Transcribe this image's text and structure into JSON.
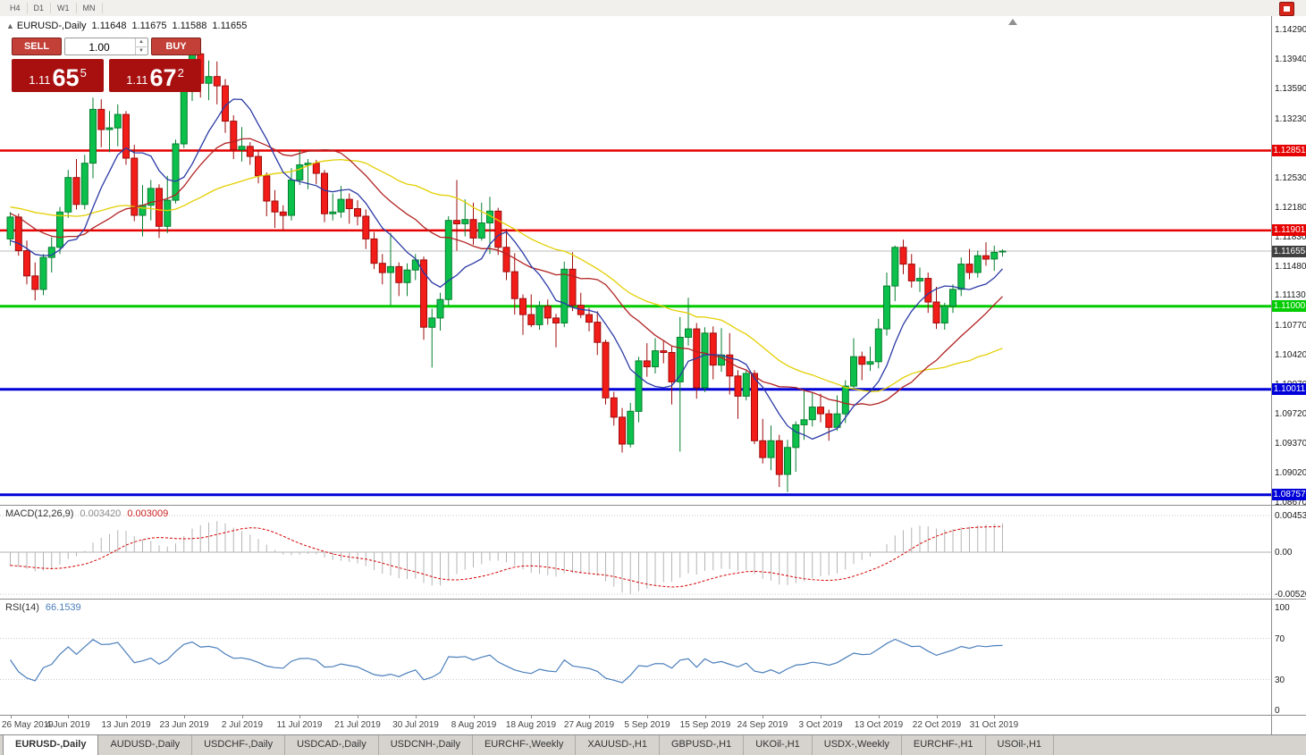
{
  "toolbar": {
    "periods": [
      "H4",
      "D1",
      "W1",
      "MN"
    ]
  },
  "chart": {
    "collapse_arrow": "▲",
    "symbol_line": {
      "symbol": "EURUSD-,Daily",
      "open": "1.11648",
      "high": "1.11675",
      "low": "1.11588",
      "close": "1.11655"
    },
    "trade_panel": {
      "sell_label": "SELL",
      "buy_label": "BUY",
      "volume": "1.00",
      "sell_price": {
        "prefix": "1.11",
        "big": "65",
        "sup": "5"
      },
      "buy_price": {
        "prefix": "1.11",
        "big": "67",
        "sup": "2"
      }
    }
  },
  "indicators": {
    "macd": {
      "label": "MACD(12,26,9)",
      "value": "0.003420",
      "signal_value": "0.003009"
    },
    "rsi": {
      "label": "RSI(14)",
      "value": "66.1539"
    }
  },
  "tabs": {
    "active_index": 0,
    "items": [
      "EURUSD-,Daily",
      "AUDUSD-,Daily",
      "USDCHF-,Daily",
      "USDCAD-,Daily",
      "USDCNH-,Daily",
      "EURCHF-,Weekly",
      "XAUUSD-,H1",
      "GBPUSD-,H1",
      "UKOil-,H1",
      "USDX-,Weekly",
      "EURCHF-,H1",
      "USOil-,H1"
    ]
  },
  "chart_data": {
    "type": "candlestick",
    "symbol": "EURUSD-,Daily",
    "price_axis": {
      "max": 1.1429,
      "min": 1.0867,
      "ticks": [
        "1.14290",
        "1.13940",
        "1.13590",
        "1.13230",
        "1.12880",
        "1.12530",
        "1.12180",
        "1.11830",
        "1.11480",
        "1.11130",
        "1.10770",
        "1.10420",
        "1.10070",
        "1.09720",
        "1.09370",
        "1.09020",
        "1.08670"
      ]
    },
    "candle_colors": {
      "up_fill": "#0cc04c",
      "up_stroke": "#067f2e",
      "down_fill": "#f21d18",
      "down_stroke": "#9e0b0b"
    },
    "levels": [
      {
        "price": 1.12851,
        "color": "#e60000",
        "width": 2.5,
        "tag": "1.12851"
      },
      {
        "price": 1.11901,
        "color": "#e60000",
        "width": 2.5,
        "tag": "1.11901"
      },
      {
        "price": 1.11,
        "color": "#00cc00",
        "width": 3,
        "tag": "1.11000"
      },
      {
        "price": 1.10011,
        "color": "#0000d8",
        "width": 3,
        "tag": "1.10011"
      },
      {
        "price": 1.08757,
        "color": "#0000d8",
        "width": 3,
        "tag": "1.08757"
      }
    ],
    "bid_line": {
      "price": 1.11655,
      "color": "#bcbcbc",
      "tag": "1.11655",
      "tag_bg": "#404040"
    },
    "moving_averages": [
      {
        "period": 34,
        "color": "#e3cf00"
      },
      {
        "period": 20,
        "color": "#b22222"
      },
      {
        "period": 8,
        "color": "#2b3aa5"
      }
    ],
    "label_step": 7,
    "date_labels": [
      "26 May 2019",
      "4 Jun 2019",
      "13 Jun 2019",
      "23 Jun 2019",
      "2 Jul 2019",
      "11 Jul 2019",
      "21 Jul 2019",
      "30 Jul 2019",
      "8 Aug 2019",
      "18 Aug 2019",
      "27 Aug 2019",
      "5 Sep 2019",
      "15 Sep 2019",
      "24 Sep 2019",
      "3 Oct 2019",
      "13 Oct 2019",
      "22 Oct 2019",
      "31 Oct 2019"
    ],
    "macd": {
      "params": [
        12,
        26,
        9
      ],
      "hist_color": "#b4b4b4",
      "signal_color": "#d40000",
      "axis_max": "0.004536",
      "axis_zero": "0.00",
      "axis_min": "-0.005205"
    },
    "rsi": {
      "period": 14,
      "color": "#4a7ebb",
      "levels": [
        70,
        30
      ],
      "axis": [
        "100",
        "70",
        "30",
        "0"
      ]
    },
    "prehistory_closes": [
      1.1308,
      1.13,
      1.1294,
      1.129,
      1.1284,
      1.1278,
      1.1272,
      1.1268,
      1.1262,
      1.1258,
      1.1254,
      1.125,
      1.1246,
      1.1242,
      1.1246,
      1.1252,
      1.1258,
      1.1264,
      1.1258,
      1.1252,
      1.1248,
      1.1244,
      1.124,
      1.1236,
      1.123,
      1.1226,
      1.1222,
      1.1218,
      1.1214,
      1.121,
      1.1206,
      1.1226,
      1.124,
      1.1252,
      1.1244,
      1.1236,
      1.1228,
      1.122,
      1.1214,
      1.124,
      1.1253,
      1.1262,
      1.127,
      1.1262,
      1.1254,
      1.1246,
      1.1238,
      1.123,
      1.1222,
      1.1214,
      1.119,
      1.1196,
      1.12,
      1.1192,
      1.1184,
      1.1176,
      1.117,
      1.1165,
      1.1162,
      1.1168
    ],
    "ohlc": [
      [
        1.118,
        1.1212,
        1.1172,
        1.1206
      ],
      [
        1.1206,
        1.121,
        1.116,
        1.1166
      ],
      [
        1.1166,
        1.1178,
        1.1126,
        1.1136
      ],
      [
        1.1136,
        1.1152,
        1.1107,
        1.112
      ],
      [
        1.112,
        1.1162,
        1.1113,
        1.1158
      ],
      [
        1.1158,
        1.1182,
        1.114,
        1.117
      ],
      [
        1.117,
        1.1218,
        1.1162,
        1.1212
      ],
      [
        1.1212,
        1.1262,
        1.1205,
        1.1253
      ],
      [
        1.1253,
        1.1275,
        1.1215,
        1.1221
      ],
      [
        1.1221,
        1.128,
        1.1215,
        1.127
      ],
      [
        1.127,
        1.1348,
        1.1252,
        1.1334
      ],
      [
        1.1334,
        1.1346,
        1.1289,
        1.131
      ],
      [
        1.131,
        1.1332,
        1.1283,
        1.1312
      ],
      [
        1.1312,
        1.134,
        1.129,
        1.1328
      ],
      [
        1.1328,
        1.1332,
        1.1268,
        1.1276
      ],
      [
        1.1276,
        1.1292,
        1.1201,
        1.1208
      ],
      [
        1.1208,
        1.1244,
        1.1183,
        1.122
      ],
      [
        1.122,
        1.125,
        1.1202,
        1.124
      ],
      [
        1.124,
        1.1245,
        1.1181,
        1.1195
      ],
      [
        1.1195,
        1.1255,
        1.1187,
        1.1226
      ],
      [
        1.1226,
        1.1298,
        1.1222,
        1.1293
      ],
      [
        1.1293,
        1.1378,
        1.1288,
        1.137
      ],
      [
        1.137,
        1.1412,
        1.1344,
        1.14
      ],
      [
        1.14,
        1.1405,
        1.1348,
        1.1365
      ],
      [
        1.1365,
        1.1392,
        1.1345,
        1.1373
      ],
      [
        1.1373,
        1.1391,
        1.134,
        1.1362
      ],
      [
        1.1362,
        1.137,
        1.1306,
        1.132
      ],
      [
        1.132,
        1.1327,
        1.1275,
        1.1286
      ],
      [
        1.1286,
        1.1313,
        1.1272,
        1.129
      ],
      [
        1.129,
        1.1295,
        1.1268,
        1.1278
      ],
      [
        1.1278,
        1.1286,
        1.1246,
        1.1255
      ],
      [
        1.1255,
        1.1259,
        1.1207,
        1.1225
      ],
      [
        1.1225,
        1.1238,
        1.1193,
        1.1212
      ],
      [
        1.1212,
        1.122,
        1.119,
        1.1208
      ],
      [
        1.1208,
        1.1264,
        1.1202,
        1.125
      ],
      [
        1.125,
        1.1286,
        1.1244,
        1.1268
      ],
      [
        1.1268,
        1.1275,
        1.1239,
        1.127
      ],
      [
        1.127,
        1.1274,
        1.1245,
        1.1258
      ],
      [
        1.1258,
        1.1262,
        1.12,
        1.121
      ],
      [
        1.121,
        1.1234,
        1.1202,
        1.1212
      ],
      [
        1.1212,
        1.1243,
        1.1205,
        1.1227
      ],
      [
        1.1227,
        1.1234,
        1.1198,
        1.1216
      ],
      [
        1.1216,
        1.1226,
        1.1196,
        1.1207
      ],
      [
        1.1207,
        1.1215,
        1.1168,
        1.118
      ],
      [
        1.118,
        1.1188,
        1.1144,
        1.1151
      ],
      [
        1.1151,
        1.1162,
        1.1126,
        1.114
      ],
      [
        1.114,
        1.1187,
        1.1101,
        1.1147
      ],
      [
        1.1147,
        1.1152,
        1.1112,
        1.1128
      ],
      [
        1.1128,
        1.1151,
        1.1112,
        1.1143
      ],
      [
        1.1143,
        1.1162,
        1.1131,
        1.1155
      ],
      [
        1.1155,
        1.1159,
        1.106,
        1.1075
      ],
      [
        1.1075,
        1.1097,
        1.1027,
        1.1086
      ],
      [
        1.1086,
        1.1116,
        1.1071,
        1.1108
      ],
      [
        1.1108,
        1.1207,
        1.1101,
        1.1202
      ],
      [
        1.1202,
        1.125,
        1.1166,
        1.1198
      ],
      [
        1.1198,
        1.1227,
        1.1183,
        1.1203
      ],
      [
        1.1203,
        1.1223,
        1.1173,
        1.1181
      ],
      [
        1.1181,
        1.1223,
        1.1178,
        1.1199
      ],
      [
        1.1199,
        1.123,
        1.1162,
        1.1213
      ],
      [
        1.1213,
        1.1217,
        1.1161,
        1.117
      ],
      [
        1.117,
        1.1192,
        1.1131,
        1.1141
      ],
      [
        1.1141,
        1.1163,
        1.109,
        1.1109
      ],
      [
        1.1109,
        1.1114,
        1.1066,
        1.109
      ],
      [
        1.109,
        1.1114,
        1.1075,
        1.1078
      ],
      [
        1.1078,
        1.1106,
        1.1072,
        1.11
      ],
      [
        1.11,
        1.1108,
        1.1078,
        1.1086
      ],
      [
        1.1086,
        1.1091,
        1.1051,
        1.108
      ],
      [
        1.108,
        1.1153,
        1.1075,
        1.1144
      ],
      [
        1.1144,
        1.1164,
        1.1094,
        1.1101
      ],
      [
        1.1101,
        1.1116,
        1.1086,
        1.109
      ],
      [
        1.109,
        1.1098,
        1.107,
        1.1081
      ],
      [
        1.1081,
        1.1094,
        1.1042,
        1.1057
      ],
      [
        1.1057,
        1.106,
        1.0983,
        1.0991
      ],
      [
        1.0991,
        1.0998,
        1.0958,
        1.0968
      ],
      [
        1.0968,
        1.0979,
        1.0926,
        1.0936
      ],
      [
        1.0936,
        1.0985,
        1.0932,
        1.0975
      ],
      [
        1.0975,
        1.104,
        1.0962,
        1.1035
      ],
      [
        1.1035,
        1.1056,
        1.1016,
        1.1028
      ],
      [
        1.1028,
        1.1062,
        1.102,
        1.1047
      ],
      [
        1.1047,
        1.1059,
        1.1032,
        1.1045
      ],
      [
        1.1045,
        1.1052,
        1.0983,
        1.101
      ],
      [
        1.101,
        1.1087,
        1.0927,
        1.1063
      ],
      [
        1.1063,
        1.111,
        1.1053,
        1.1073
      ],
      [
        1.1073,
        1.108,
        1.099,
        1.1003
      ],
      [
        1.1003,
        1.1075,
        1.0998,
        1.1068
      ],
      [
        1.1068,
        1.1076,
        1.1013,
        1.103
      ],
      [
        1.103,
        1.1074,
        1.1022,
        1.1042
      ],
      [
        1.1042,
        1.1068,
        1.0995,
        1.1017
      ],
      [
        1.1017,
        1.1024,
        1.0966,
        1.0993
      ],
      [
        1.0993,
        1.1024,
        1.0988,
        1.102
      ],
      [
        1.102,
        1.1024,
        1.0936,
        1.094
      ],
      [
        1.094,
        1.0966,
        1.0913,
        1.092
      ],
      [
        1.092,
        1.0958,
        1.0905,
        1.094
      ],
      [
        1.094,
        1.0947,
        1.0885,
        1.09
      ],
      [
        1.09,
        1.0941,
        1.0879,
        1.0932
      ],
      [
        1.0932,
        1.0963,
        1.0903,
        1.0959
      ],
      [
        1.0959,
        1.0999,
        1.0941,
        1.0965
      ],
      [
        1.0965,
        1.0997,
        1.0957,
        1.098
      ],
      [
        1.098,
        1.0996,
        1.0962,
        1.0972
      ],
      [
        1.0972,
        1.0977,
        1.094,
        1.0956
      ],
      [
        1.0956,
        1.0994,
        1.0952,
        1.0972
      ],
      [
        1.0972,
        1.1012,
        1.0961,
        1.1005
      ],
      [
        1.1005,
        1.1062,
        1.1002,
        1.104
      ],
      [
        1.104,
        1.1046,
        1.1012,
        1.1031
      ],
      [
        1.1031,
        1.1052,
        1.1023,
        1.1034
      ],
      [
        1.1034,
        1.1085,
        1.1026,
        1.1073
      ],
      [
        1.1073,
        1.114,
        1.1065,
        1.1124
      ],
      [
        1.1124,
        1.1172,
        1.1106,
        1.117
      ],
      [
        1.117,
        1.1179,
        1.1138,
        1.115
      ],
      [
        1.115,
        1.1162,
        1.1122,
        1.113
      ],
      [
        1.113,
        1.1146,
        1.1117,
        1.1133
      ],
      [
        1.1133,
        1.114,
        1.1092,
        1.1105
      ],
      [
        1.1105,
        1.1123,
        1.1073,
        1.108
      ],
      [
        1.108,
        1.1104,
        1.1072,
        1.11
      ],
      [
        1.11,
        1.1126,
        1.1092,
        1.112
      ],
      [
        1.112,
        1.1158,
        1.1112,
        1.115
      ],
      [
        1.115,
        1.1168,
        1.1132,
        1.114
      ],
      [
        1.114,
        1.1166,
        1.1134,
        1.116
      ],
      [
        1.116,
        1.1176,
        1.1148,
        1.1156
      ],
      [
        1.1156,
        1.1172,
        1.1142,
        1.1164
      ],
      [
        1.11648,
        1.11675,
        1.11588,
        1.11655
      ]
    ]
  }
}
